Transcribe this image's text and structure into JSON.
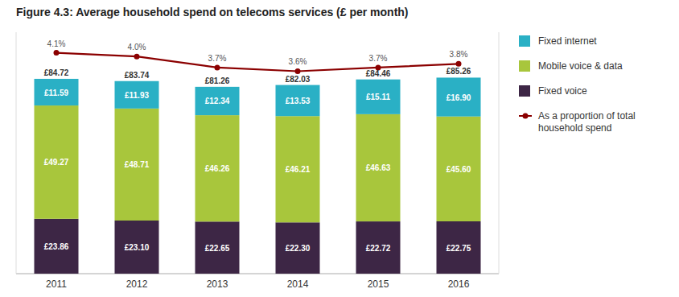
{
  "chart_data": {
    "type": "bar",
    "title": "Figure 4.3: Average household spend on telecoms services (£ per month)",
    "stacked": true,
    "data_labels": true,
    "tick_labels": "x",
    "legend": "right",
    "categories": [
      "2011",
      "2012",
      "2013",
      "2014",
      "2015",
      "2016"
    ],
    "ylim": [
      0,
      105
    ],
    "yticks": [],
    "y2lim": [
      -1.9,
      4.66
    ],
    "y2ticks": [],
    "series": [
      {
        "name": "Fixed voice",
        "color": "#3d2645",
        "values": [
          23.86,
          23.1,
          22.65,
          22.3,
          22.72,
          22.75
        ],
        "value_labels": [
          "£23.86",
          "£23.10",
          "£22.65",
          "£22.30",
          "£22.72",
          "£22.75"
        ]
      },
      {
        "name": "Mobile voice & data",
        "color": "#a8c63c",
        "values": [
          49.27,
          48.71,
          46.26,
          46.21,
          46.63,
          45.6
        ],
        "value_labels": [
          "£49.27",
          "£48.71",
          "£46.26",
          "£46.21",
          "£46.63",
          "£45.60"
        ]
      },
      {
        "name": "Fixed internet",
        "color": "#2ab0c5",
        "values": [
          11.59,
          11.93,
          12.34,
          13.53,
          15.11,
          16.9
        ],
        "value_labels": [
          "£11.59",
          "£11.93",
          "£12.34",
          "£13.53",
          "£15.11",
          "£16.90"
        ]
      },
      {
        "name": "As a proportion of total household spend",
        "type": "line",
        "axis": "y2",
        "color": "#8b0000",
        "marker": "circle",
        "values": [
          4.1,
          4.0,
          3.7,
          3.6,
          3.7,
          3.8
        ],
        "value_labels": [
          "4.1%",
          "4.0%",
          "3.7%",
          "3.6%",
          "3.7%",
          "3.8%"
        ]
      }
    ],
    "totals": [
      84.72,
      83.74,
      81.26,
      82.03,
      84.46,
      85.26
    ],
    "total_labels": [
      "£84.72",
      "£83.74",
      "£81.26",
      "£82.03",
      "£84.46",
      "£85.26"
    ]
  }
}
